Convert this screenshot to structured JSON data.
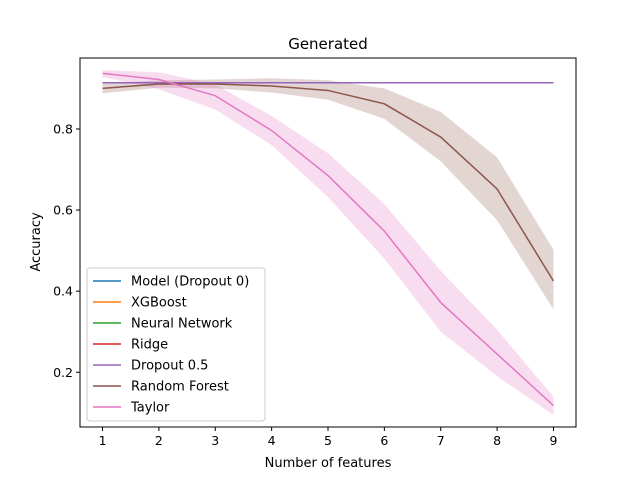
{
  "chart_data": {
    "type": "line",
    "title": "Generated",
    "xlabel": "Number of features",
    "ylabel": "Accuracy",
    "x": [
      1,
      2,
      3,
      4,
      5,
      6,
      7,
      8,
      9
    ],
    "xticks": [
      "1",
      "2",
      "3",
      "4",
      "5",
      "6",
      "7",
      "8",
      "9"
    ],
    "yticks": [
      "0.2",
      "0.4",
      "0.6",
      "0.8"
    ],
    "ytick_values": [
      0.2,
      0.4,
      0.6,
      0.8
    ],
    "xlim": [
      0.6,
      9.4
    ],
    "ylim": [
      0.065,
      0.975
    ],
    "grid": false,
    "legend_position": "lower-left",
    "series": [
      {
        "name": "Model (Dropout 0)",
        "color": "#1f77b4",
        "values": [
          0.914,
          0.914,
          0.914,
          0.914,
          0.914,
          0.914,
          0.914,
          0.914,
          0.914
        ]
      },
      {
        "name": "XGBoost",
        "color": "#ff7f0e",
        "values": [
          0.914,
          0.914,
          0.914,
          0.914,
          0.914,
          0.914,
          0.914,
          0.914,
          0.914
        ]
      },
      {
        "name": "Neural Network",
        "color": "#2ca02c",
        "values": [
          0.914,
          0.914,
          0.914,
          0.914,
          0.914,
          0.914,
          0.914,
          0.914,
          0.914
        ]
      },
      {
        "name": "Ridge",
        "color": "#d62728",
        "values": [
          0.914,
          0.914,
          0.914,
          0.914,
          0.914,
          0.914,
          0.914,
          0.914,
          0.914
        ]
      },
      {
        "name": "Dropout 0.5",
        "color": "#9467bd",
        "values": [
          0.914,
          0.914,
          0.914,
          0.914,
          0.914,
          0.914,
          0.914,
          0.914,
          0.914
        ]
      },
      {
        "name": "Random Forest",
        "color": "#8c564b",
        "values": [
          0.9,
          0.911,
          0.911,
          0.906,
          0.895,
          0.862,
          0.78,
          0.652,
          0.425
        ],
        "lower": [
          0.888,
          0.902,
          0.9,
          0.89,
          0.872,
          0.825,
          0.72,
          0.575,
          0.355
        ],
        "upper": [
          0.912,
          0.92,
          0.922,
          0.925,
          0.92,
          0.9,
          0.842,
          0.73,
          0.502
        ]
      },
      {
        "name": "Taylor",
        "color": "#e377c2",
        "values": [
          0.937,
          0.922,
          0.882,
          0.796,
          0.685,
          0.548,
          0.372,
          0.245,
          0.118
        ],
        "lower": [
          0.928,
          0.898,
          0.848,
          0.76,
          0.632,
          0.48,
          0.3,
          0.19,
          0.095
        ],
        "upper": [
          0.945,
          0.94,
          0.91,
          0.832,
          0.74,
          0.615,
          0.45,
          0.305,
          0.14
        ]
      }
    ]
  }
}
